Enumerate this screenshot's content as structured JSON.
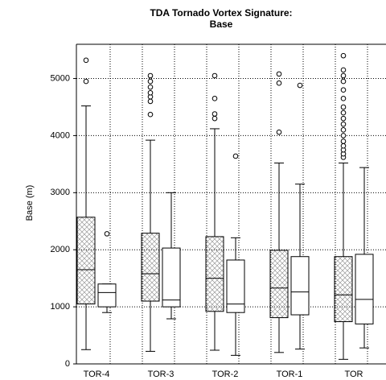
{
  "chart_data": {
    "type": "box",
    "title": [
      "TDA Tornado Vortex Signature:",
      "Base"
    ],
    "ylabel": "Base (m)",
    "categories": [
      "TOR-4",
      "TOR-3",
      "TOR-2",
      "TOR-1",
      "TOR"
    ],
    "ylim": [
      0,
      5600
    ],
    "yticks": [
      0,
      1000,
      2000,
      3000,
      4000,
      5000
    ],
    "grid": true,
    "color": "#000000",
    "series": [
      {
        "hatch": true,
        "values": [
          {
            "whislo": 250,
            "q1": 1050,
            "med": 1650,
            "q3": 2570,
            "whishi": 4520,
            "fliers": [
              4950,
              5320
            ]
          },
          {
            "whislo": 220,
            "q1": 1100,
            "med": 1580,
            "q3": 2290,
            "whishi": 3920,
            "fliers": [
              4370,
              4600,
              4680,
              4750,
              4850,
              4950,
              5050
            ]
          },
          {
            "whislo": 240,
            "q1": 920,
            "med": 1500,
            "q3": 2230,
            "whishi": 4120,
            "fliers": [
              4300,
              4380,
              4650,
              5050
            ]
          },
          {
            "whislo": 200,
            "q1": 810,
            "med": 1330,
            "q3": 1990,
            "whishi": 3520,
            "fliers": [
              4060,
              4920,
              5080
            ]
          },
          {
            "whislo": 80,
            "q1": 740,
            "med": 1210,
            "q3": 1880,
            "whishi": 3520,
            "fliers": [
              3620,
              3680,
              3750,
              3820,
              3900,
              4000,
              4100,
              4200,
              4300,
              4400,
              4500,
              4650,
              4800,
              4950,
              5050,
              5150,
              5400
            ]
          }
        ]
      },
      {
        "hatch": false,
        "values": [
          {
            "whislo": 900,
            "q1": 1000,
            "med": 1250,
            "q3": 1400,
            "whishi": 1400,
            "fliers": [
              2280
            ]
          },
          {
            "whislo": 790,
            "q1": 1000,
            "med": 1120,
            "q3": 2030,
            "whishi": 3000,
            "fliers": []
          },
          {
            "whislo": 150,
            "q1": 900,
            "med": 1050,
            "q3": 1820,
            "whishi": 2210,
            "fliers": [
              3640
            ]
          },
          {
            "whislo": 260,
            "q1": 860,
            "med": 1260,
            "q3": 1880,
            "whishi": 3150,
            "fliers": [
              4880
            ]
          },
          {
            "whislo": 280,
            "q1": 700,
            "med": 1130,
            "q3": 1920,
            "whishi": 3440,
            "fliers": []
          }
        ]
      }
    ]
  }
}
